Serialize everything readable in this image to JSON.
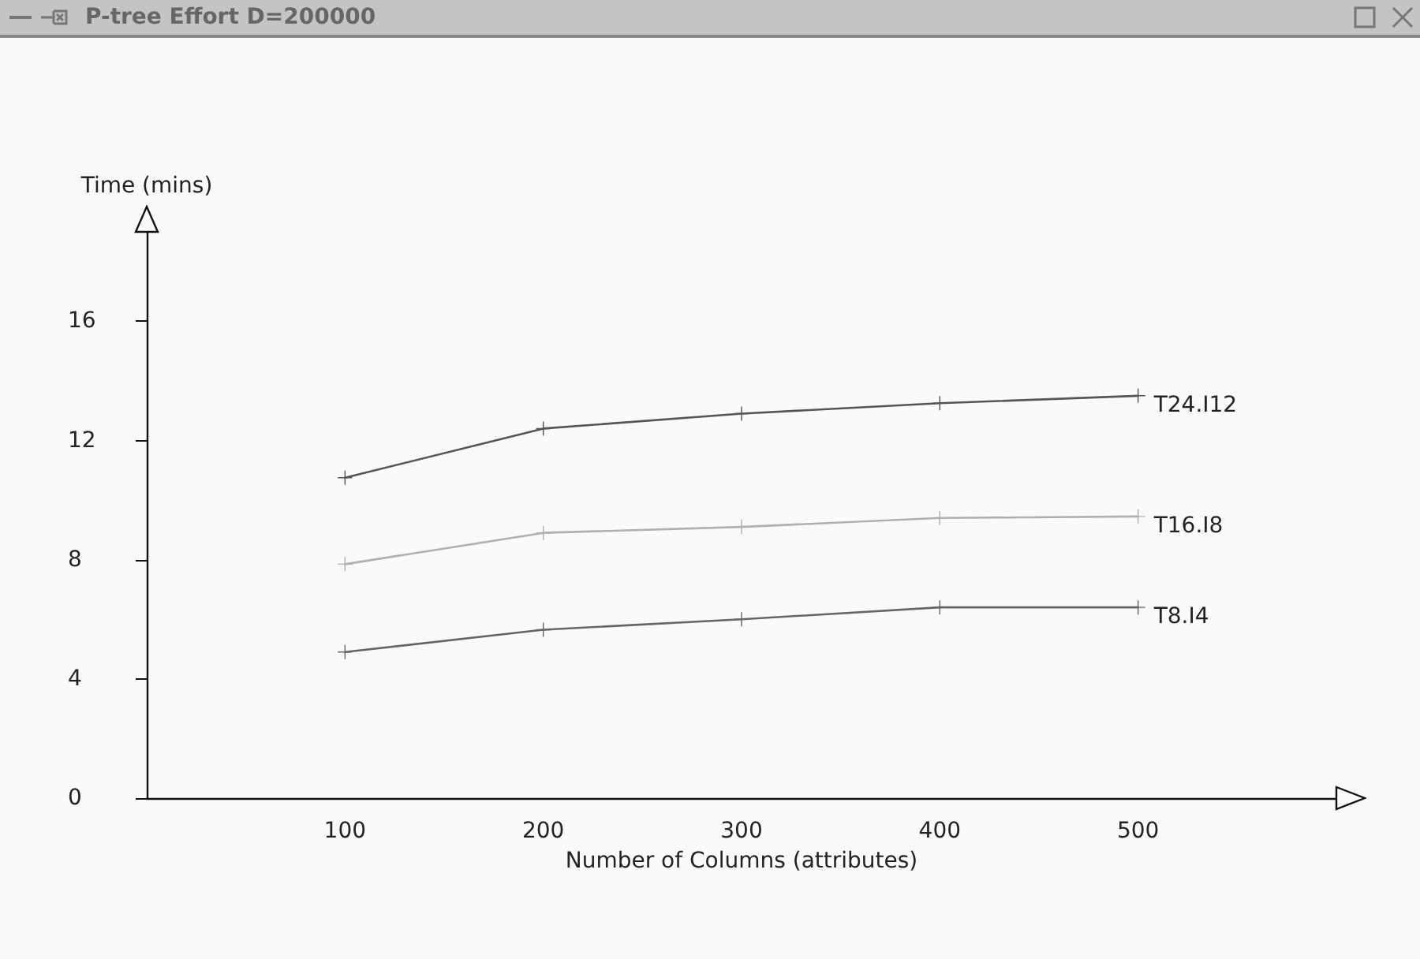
{
  "chart_data": {
    "type": "line",
    "title": "P-tree Effort D=200000",
    "xlabel": "Number of Columns (attributes)",
    "ylabel": "Time (mins)",
    "x": [
      100,
      200,
      300,
      400,
      500
    ],
    "series": [
      {
        "name": "T24.I12",
        "color": "#555555",
        "values": [
          10.75,
          12.4,
          12.9,
          13.25,
          13.5
        ]
      },
      {
        "name": "T16.I8",
        "color": "#b0b0b0",
        "values": [
          7.85,
          8.9,
          9.1,
          9.4,
          9.45
        ]
      },
      {
        "name": "T8.I4",
        "color": "#666666",
        "values": [
          4.9,
          5.65,
          6.0,
          6.4,
          6.4
        ]
      }
    ],
    "xlim": [
      0,
      600
    ],
    "xticks": [
      100,
      200,
      300,
      400,
      500
    ],
    "ylim": [
      0,
      19
    ],
    "yticks": [
      0,
      4,
      8,
      12,
      16
    ],
    "grid": false,
    "legend": false,
    "marker": "cross",
    "line_style": "solid"
  }
}
